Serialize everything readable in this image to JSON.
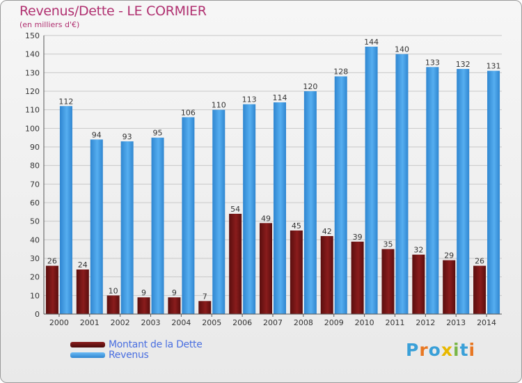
{
  "title": "Revenus/Dette - LE CORMIER",
  "subtitle": "(en milliers d'€)",
  "logo": {
    "text": "Proxiti",
    "letters": [
      "P",
      "r",
      "o",
      "x",
      "i",
      "t",
      "i"
    ],
    "colors": [
      "#3aa0d8",
      "#e87722",
      "#3aa0d8",
      "#e8b800",
      "#7ab648",
      "#3aa0d8",
      "#e87722"
    ]
  },
  "colors": {
    "dette": "#7a1a1a",
    "revenus": "#4aa3e8",
    "title": "#b03070"
  },
  "chart_data": {
    "type": "bar",
    "categories": [
      "2000",
      "2001",
      "2002",
      "2003",
      "2004",
      "2005",
      "2006",
      "2007",
      "2008",
      "2009",
      "2010",
      "2011",
      "2012",
      "2013",
      "2014"
    ],
    "series": [
      {
        "name": "Montant de la Dette",
        "values": [
          26,
          24,
          10,
          9,
          9,
          7,
          54,
          49,
          45,
          42,
          39,
          35,
          32,
          29,
          26
        ]
      },
      {
        "name": "Revenus",
        "values": [
          112,
          94,
          93,
          95,
          106,
          110,
          113,
          114,
          120,
          128,
          144,
          140,
          133,
          132,
          131
        ]
      }
    ],
    "ylim": [
      0,
      150
    ],
    "yticks": [
      0,
      10,
      20,
      30,
      40,
      50,
      60,
      70,
      80,
      90,
      100,
      110,
      120,
      130,
      140,
      150
    ],
    "grid": true,
    "legend": "bottom-left"
  }
}
